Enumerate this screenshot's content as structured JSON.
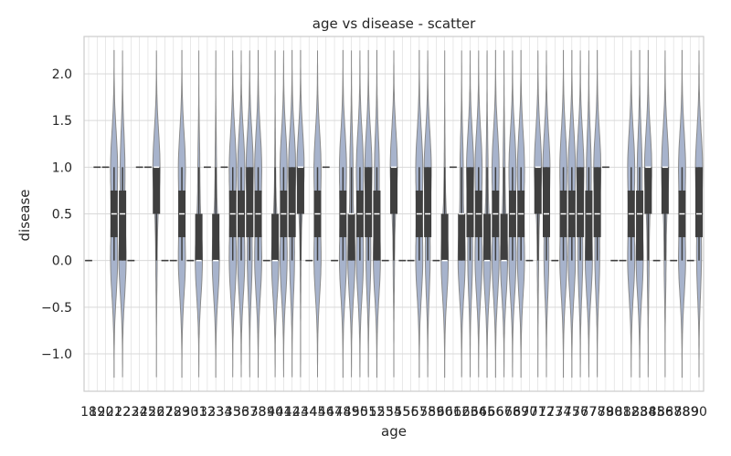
{
  "chart_data": {
    "type": "violin",
    "title": "age vs disease - scatter",
    "xlabel": "age",
    "ylabel": "disease",
    "ylim": [
      -1.4,
      2.4
    ],
    "yticks": [
      -1.0,
      -0.5,
      0.0,
      0.5,
      1.0,
      1.5,
      2.0
    ],
    "ytick_labels": [
      "−1.0",
      "−0.5",
      "0.0",
      "0.5",
      "1.0",
      "1.5",
      "2.0"
    ],
    "grid": true,
    "legend": "none",
    "categories": [
      "18",
      "19",
      "20",
      "21",
      "22",
      "23",
      "24",
      "25",
      "26",
      "27",
      "28",
      "29",
      "30",
      "31",
      "32",
      "33",
      "34",
      "35",
      "36",
      "37",
      "38",
      "39",
      "40",
      "41",
      "42",
      "43",
      "44",
      "45",
      "46",
      "47",
      "48",
      "49",
      "50",
      "51",
      "52",
      "53",
      "54",
      "55",
      "56",
      "57",
      "58",
      "59",
      "60",
      "61",
      "62",
      "63",
      "64",
      "65",
      "66",
      "67",
      "68",
      "69",
      "70",
      "71",
      "72",
      "73",
      "74",
      "75",
      "76",
      "77",
      "78",
      "79",
      "80",
      "81",
      "82",
      "83",
      "84",
      "85",
      "86",
      "87",
      "88",
      "89",
      "90"
    ],
    "means": [
      0.0,
      1.0,
      1.0,
      0.5,
      0.4,
      0.0,
      1.0,
      1.0,
      0.85,
      0.0,
      0.0,
      0.5,
      0.0,
      0.2,
      1.0,
      0.15,
      1.0,
      0.5,
      0.5,
      0.6,
      0.5,
      0.0,
      0.1,
      0.5,
      0.6,
      0.9,
      0.0,
      0.5,
      1.0,
      0.0,
      0.5,
      0.3,
      0.5,
      0.6,
      0.4,
      0.0,
      0.85,
      0.0,
      0.0,
      0.5,
      0.6,
      0.0,
      0.1,
      1.0,
      0.3,
      0.6,
      0.5,
      0.2,
      0.5,
      0.2,
      0.5,
      0.5,
      0.0,
      0.85,
      0.6,
      0.0,
      0.5,
      0.5,
      0.6,
      0.4,
      0.6,
      1.0,
      0.0,
      0.0,
      0.5,
      0.4,
      0.8,
      0.0,
      0.8,
      0.0,
      0.5,
      0.0,
      0.6
    ],
    "violin_color": "#a7b3cc",
    "box_color": "#3f3f3f",
    "grid_color": "#d9d9d9",
    "frame_color": "#cccccc"
  }
}
